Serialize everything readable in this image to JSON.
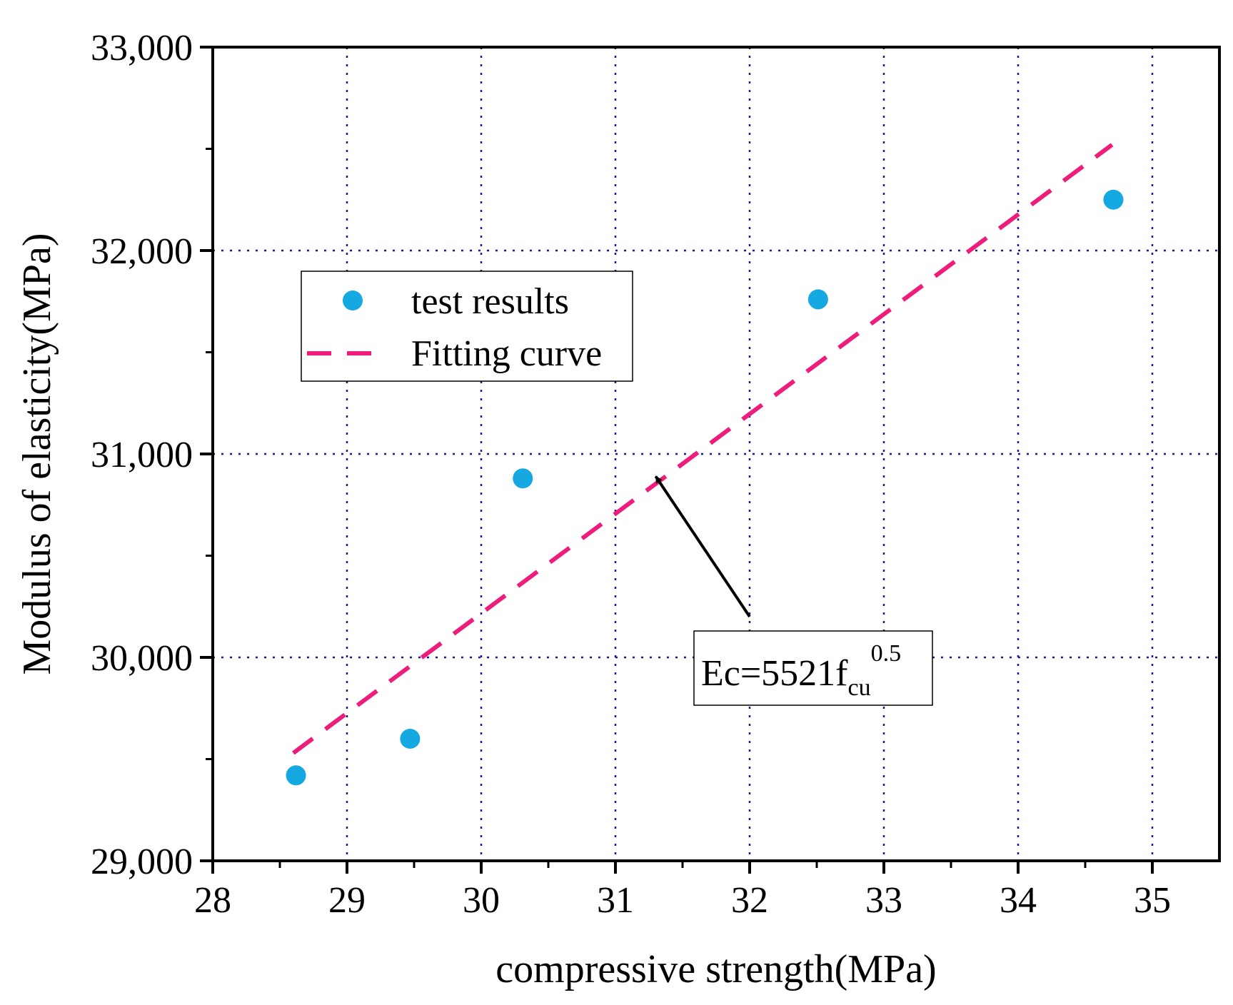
{
  "chart_data": {
    "type": "scatter",
    "xlabel": "compressive strength(MPa)",
    "ylabel": "Modulus of elasticity(MPa)",
    "xlim": [
      28,
      35.5
    ],
    "ylim": [
      29000,
      33000
    ],
    "xticks": [
      28,
      29,
      30,
      31,
      32,
      33,
      34,
      35
    ],
    "yticks": [
      29000,
      30000,
      31000,
      32000,
      33000
    ],
    "xtick_labels": [
      "28",
      "29",
      "30",
      "31",
      "32",
      "33",
      "34",
      "35"
    ],
    "ytick_labels": [
      "29,000",
      "30,000",
      "31,000",
      "32,000",
      "33,000"
    ],
    "grid": true,
    "legend_position": "upper-left",
    "series": [
      {
        "name": "test results",
        "kind": "scatter",
        "color": "#16a8e0",
        "x": [
          28.62,
          29.47,
          30.31,
          32.51,
          34.71
        ],
        "y": [
          29420,
          29600,
          30880,
          31760,
          32250
        ]
      },
      {
        "name": "Fitting curve",
        "kind": "dashed-line",
        "color": "#ee1c7a",
        "x": [
          28.6,
          34.7
        ],
        "y": [
          29530,
          32520
        ]
      }
    ],
    "annotation": {
      "base": "Ec=5521f",
      "subscript": "cu",
      "superscript": "0.5",
      "arrow_target": [
        31.3,
        30890
      ],
      "arrow_from": [
        32.0,
        30200
      ]
    }
  }
}
